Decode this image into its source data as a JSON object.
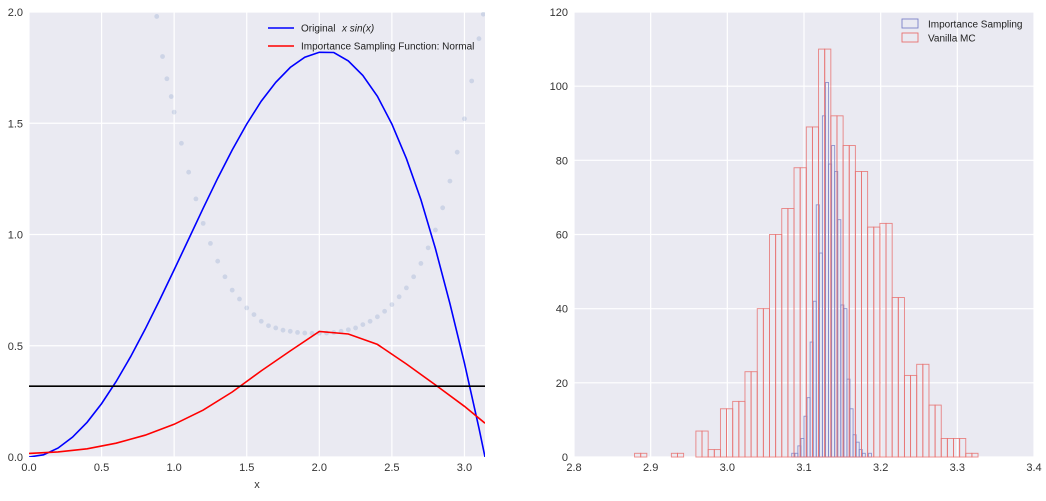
{
  "chart_data": [
    {
      "type": "line",
      "title": "",
      "xlabel": "x",
      "ylabel": "",
      "xlim": [
        0.0,
        3.14159
      ],
      "ylim": [
        0.0,
        2.0
      ],
      "xticks": [
        0.0,
        0.5,
        1.0,
        1.5,
        2.0,
        2.5,
        3.0
      ],
      "xtick_labels": [
        "0.0",
        "0.5",
        "1.0",
        "1.5",
        "2.0",
        "2.5",
        "3.0"
      ],
      "yticks": [
        0.0,
        0.5,
        1.0,
        1.5,
        2.0
      ],
      "ytick_labels": [
        "0.0",
        "0.5",
        "1.0",
        "1.5",
        "2.0"
      ],
      "grid": true,
      "legend_position": "top-right",
      "series": [
        {
          "name": "Original",
          "name_math": "x sin(x)",
          "color": "#0000ff",
          "x": [
            0.0,
            0.1,
            0.2,
            0.3,
            0.4,
            0.5,
            0.6,
            0.7,
            0.8,
            0.9,
            1.0,
            1.1,
            1.2,
            1.3,
            1.4,
            1.5,
            1.6,
            1.7,
            1.8,
            1.9,
            2.0,
            2.1,
            2.2,
            2.3,
            2.4,
            2.5,
            2.6,
            2.7,
            2.8,
            2.9,
            3.0,
            3.1,
            3.1416
          ],
          "y": [
            0.0,
            0.01,
            0.04,
            0.089,
            0.156,
            0.24,
            0.339,
            0.451,
            0.574,
            0.705,
            0.841,
            0.98,
            1.118,
            1.253,
            1.38,
            1.496,
            1.599,
            1.684,
            1.751,
            1.797,
            1.819,
            1.818,
            1.78,
            1.715,
            1.621,
            1.496,
            1.341,
            1.157,
            0.937,
            0.69,
            0.423,
            0.129,
            0.0
          ]
        },
        {
          "name": "Importance Sampling Function: Normal",
          "color": "#ff0000",
          "x": [
            0.0,
            0.2,
            0.4,
            0.6,
            0.8,
            1.0,
            1.2,
            1.4,
            1.6,
            1.8,
            2.0,
            2.2,
            2.4,
            2.6,
            2.8,
            3.0,
            3.1416
          ],
          "y": [
            0.016,
            0.023,
            0.037,
            0.062,
            0.098,
            0.147,
            0.211,
            0.292,
            0.387,
            0.477,
            0.564,
            0.553,
            0.506,
            0.418,
            0.324,
            0.228,
            0.152
          ]
        },
        {
          "name": "",
          "color": "#000000",
          "x": [
            0.0,
            3.1416
          ],
          "y": [
            0.318,
            0.318
          ]
        }
      ],
      "scatter": {
        "color": "#4c72b0",
        "opacity": 0.18,
        "x": [
          0.88,
          0.92,
          0.95,
          0.98,
          1.0,
          1.05,
          1.1,
          1.15,
          1.2,
          1.25,
          1.3,
          1.35,
          1.4,
          1.45,
          1.5,
          1.55,
          1.6,
          1.65,
          1.7,
          1.75,
          1.8,
          1.85,
          1.9,
          1.95,
          2.0,
          2.05,
          2.1,
          2.15,
          2.2,
          2.25,
          2.3,
          2.35,
          2.4,
          2.45,
          2.5,
          2.55,
          2.6,
          2.65,
          2.7,
          2.75,
          2.8,
          2.85,
          2.9,
          2.95,
          3.0,
          3.05,
          3.1,
          3.13
        ],
        "y": [
          1.98,
          1.8,
          1.7,
          1.62,
          1.55,
          1.41,
          1.28,
          1.16,
          1.05,
          0.96,
          0.88,
          0.81,
          0.75,
          0.71,
          0.67,
          0.64,
          0.61,
          0.59,
          0.58,
          0.57,
          0.565,
          0.56,
          0.557,
          0.556,
          0.556,
          0.557,
          0.56,
          0.565,
          0.572,
          0.58,
          0.595,
          0.61,
          0.63,
          0.655,
          0.685,
          0.72,
          0.76,
          0.81,
          0.87,
          0.94,
          1.02,
          1.12,
          1.24,
          1.37,
          1.52,
          1.69,
          1.88,
          1.99
        ]
      }
    },
    {
      "type": "histogram",
      "title": "",
      "xlabel": "",
      "ylabel": "",
      "xlim": [
        2.8,
        3.4
      ],
      "ylim": [
        0,
        120
      ],
      "xticks": [
        2.8,
        2.9,
        3.0,
        3.1,
        3.2,
        3.3,
        3.4
      ],
      "xtick_labels": [
        "2.8",
        "2.9",
        "3.0",
        "3.1",
        "3.2",
        "3.3",
        "3.4"
      ],
      "yticks": [
        0,
        20,
        40,
        60,
        80,
        100,
        120
      ],
      "ytick_labels": [
        "0",
        "20",
        "40",
        "60",
        "80",
        "100",
        "120"
      ],
      "grid": true,
      "legend_position": "top-right",
      "series": [
        {
          "name": "Importance Sampling",
          "color": "#7b82c8",
          "edges": [
            3.084,
            3.088,
            3.092,
            3.096,
            3.1,
            3.104,
            3.108,
            3.112,
            3.116,
            3.12,
            3.124,
            3.128,
            3.132,
            3.136,
            3.14,
            3.144,
            3.148,
            3.152,
            3.156,
            3.16,
            3.164,
            3.168,
            3.172,
            3.176,
            3.18,
            3.184,
            3.188
          ],
          "counts": [
            1,
            1,
            3,
            5,
            11,
            16,
            31,
            42,
            68,
            55,
            92,
            101,
            79,
            84,
            77,
            64,
            41,
            40,
            21,
            13,
            6,
            4,
            2,
            1,
            0,
            1
          ]
        },
        {
          "name": "Vanilla MC",
          "color": "#e8706f",
          "edges": [
            2.879,
            2.887,
            2.895,
            2.903,
            2.911,
            2.919,
            2.927,
            2.935,
            2.943,
            2.951,
            2.959,
            2.967,
            2.975,
            2.983,
            2.991,
            2.999,
            3.007,
            3.015,
            3.023,
            3.031,
            3.039,
            3.047,
            3.055,
            3.063,
            3.071,
            3.079,
            3.087,
            3.095,
            3.103,
            3.111,
            3.119,
            3.127,
            3.135,
            3.143,
            3.151,
            3.159,
            3.167,
            3.175,
            3.183,
            3.191,
            3.199,
            3.207,
            3.215,
            3.223,
            3.231,
            3.239,
            3.247,
            3.255,
            3.263,
            3.271,
            3.279,
            3.287,
            3.295,
            3.303,
            3.311,
            3.319,
            3.327,
            3.335
          ],
          "counts": [
            1,
            1,
            0,
            0,
            0,
            0,
            1,
            1,
            0,
            0,
            7,
            7,
            2,
            2,
            13,
            13,
            15,
            15,
            23,
            23,
            40,
            40,
            60,
            60,
            67,
            67,
            78,
            78,
            89,
            89,
            110,
            110,
            92,
            92,
            84,
            84,
            77,
            77,
            62,
            62,
            63,
            63,
            43,
            43,
            22,
            22,
            25,
            25,
            14,
            14,
            5,
            5,
            5,
            5,
            1,
            1,
            0
          ]
        }
      ]
    }
  ]
}
